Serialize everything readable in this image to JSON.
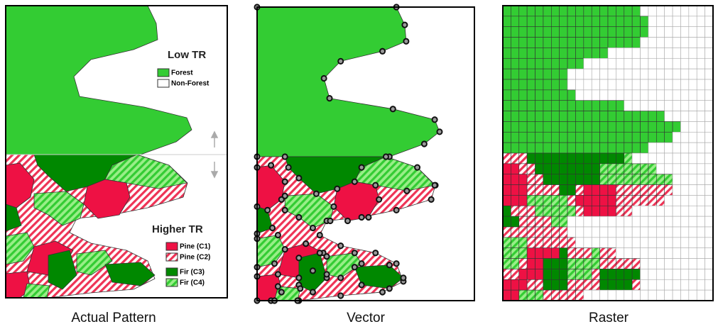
{
  "panel_titles": [
    "Actual Pattern",
    "Vector",
    "Raster"
  ],
  "legend": {
    "low_tr": {
      "title": "Low TR",
      "items": [
        "Forest",
        "Non-Forest"
      ]
    },
    "higher_tr": {
      "title": "Higher TR",
      "items": [
        "Pine (C1)",
        "Pine (C2)",
        "Fir (C3)",
        "Fir (C4)"
      ]
    }
  }
}
